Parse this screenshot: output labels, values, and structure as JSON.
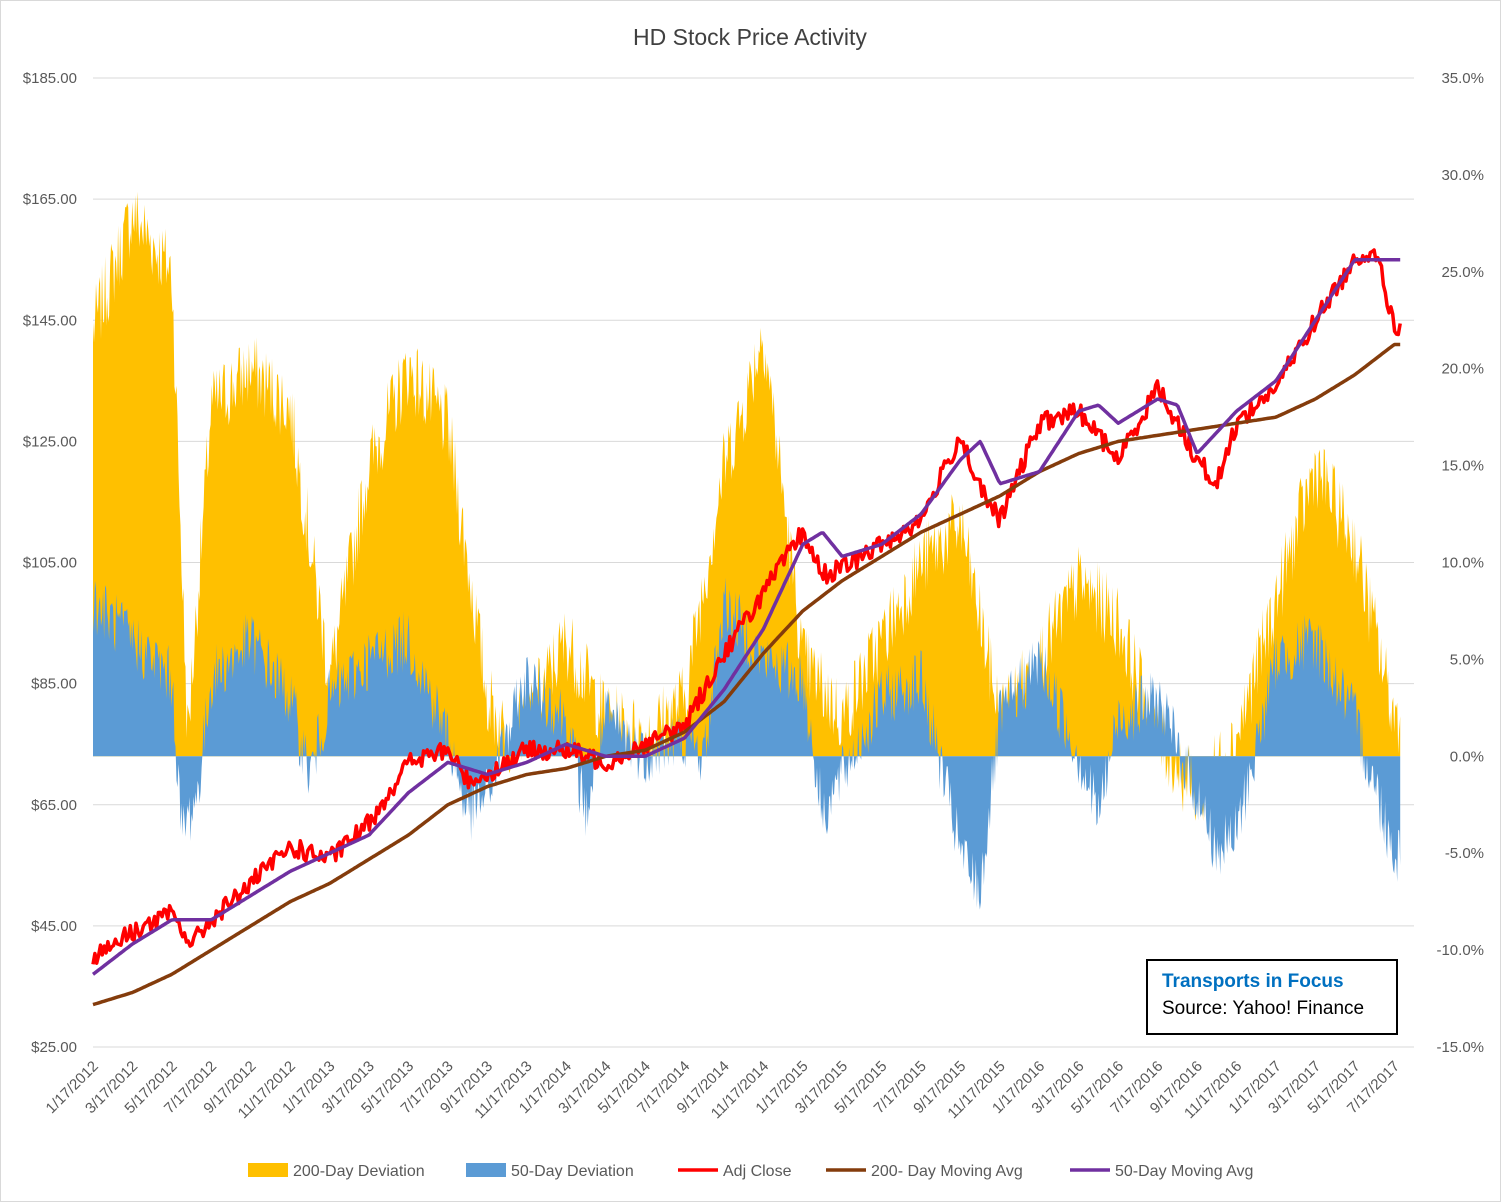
{
  "chart_data": {
    "type": "line",
    "title": "HD Stock Price Activity",
    "y_left": {
      "ticks": [
        "$185.00",
        "$165.00",
        "$145.00",
        "$125.00",
        "$105.00",
        "$85.00",
        "$65.00",
        "$45.00",
        "$25.00"
      ],
      "range": [
        25,
        185
      ]
    },
    "y_right": {
      "ticks": [
        "35.0%",
        "30.0%",
        "25.0%",
        "20.0%",
        "15.0%",
        "10.0%",
        "5.0%",
        "0.0%",
        "-5.0%",
        "-10.0%",
        "-15.0%"
      ],
      "range": [
        -15,
        35
      ]
    },
    "x_ticks": [
      "1/17/2012",
      "3/17/2012",
      "5/17/2012",
      "7/17/2012",
      "9/17/2012",
      "11/17/2012",
      "1/17/2013",
      "3/17/2013",
      "5/17/2013",
      "7/17/2013",
      "9/17/2013",
      "11/17/2013",
      "1/17/2014",
      "3/17/2014",
      "5/17/2014",
      "7/17/2014",
      "9/17/2014",
      "11/17/2014",
      "1/17/2015",
      "3/17/2015",
      "5/17/2015",
      "7/17/2015",
      "9/17/2015",
      "11/17/2015",
      "1/17/2016",
      "3/17/2016",
      "5/17/2016",
      "7/17/2016",
      "9/17/2016",
      "11/17/2016",
      "1/17/2017",
      "3/17/2017",
      "5/17/2017",
      "7/17/2017"
    ],
    "grid": true,
    "legend_position": "bottom",
    "series": [
      {
        "name": "200-Day Deviation",
        "type": "area",
        "axis": "right",
        "color": "#ffc000",
        "months": [
          0,
          2,
          4,
          4.8,
          6,
          8,
          10,
          12,
          14,
          16,
          18,
          20,
          21,
          22,
          24,
          26,
          28,
          30,
          32,
          33,
          34,
          36,
          38,
          40,
          42,
          44,
          46,
          48,
          50,
          52,
          54,
          56,
          58,
          60,
          62,
          64,
          66
        ],
        "values": [
          22,
          28,
          25,
          1,
          18,
          20,
          18,
          4,
          15,
          20,
          17,
          3,
          1,
          2,
          6,
          2,
          1,
          3,
          15,
          18,
          22,
          5,
          2,
          6,
          10,
          12,
          2,
          5,
          9,
          7,
          1,
          -2,
          1,
          8,
          15,
          11,
          2
        ]
      },
      {
        "name": "50-Day Deviation",
        "type": "area",
        "axis": "right",
        "color": "#5b9bd5",
        "months": [
          0,
          2,
          4,
          4.5,
          5.3,
          6,
          8,
          10,
          11,
          12,
          14,
          16,
          18,
          19,
          20,
          22,
          24,
          25,
          26,
          28,
          30,
          31,
          32,
          34,
          36,
          37,
          38,
          40,
          42,
          44,
          45,
          46,
          48,
          50,
          51,
          52,
          54,
          56,
          57,
          58,
          60,
          62,
          64,
          66
        ],
        "values": [
          8,
          6,
          4,
          -4,
          -2,
          4,
          6,
          3,
          -1,
          3,
          5,
          6,
          1,
          -3,
          -2,
          4,
          2,
          -3,
          2,
          0,
          1,
          0,
          8,
          5,
          4,
          -3,
          -1,
          3,
          4,
          -5,
          -7,
          2,
          5,
          0,
          -3,
          2,
          3,
          -2,
          -5,
          -4,
          5,
          6,
          2,
          -5
        ]
      },
      {
        "name": "Adj Close",
        "type": "line",
        "axis": "left",
        "color": "#ff0000",
        "months": [
          0,
          2,
          4,
          5,
          6,
          8,
          10,
          12,
          14,
          16,
          18,
          19,
          20,
          22,
          24,
          26,
          28,
          30,
          32,
          34,
          36,
          37,
          38,
          40,
          42,
          44,
          45,
          46,
          48,
          50,
          52,
          54,
          56,
          57,
          58,
          60,
          62,
          64,
          65,
          66
        ],
        "values": [
          40,
          44,
          47,
          42,
          46,
          52,
          58,
          56,
          62,
          72,
          74,
          69,
          70,
          74,
          74,
          72,
          75,
          78,
          90,
          100,
          110,
          103,
          104,
          108,
          112,
          126,
          117,
          112,
          128,
          130,
          122,
          134,
          122,
          118,
          128,
          134,
          145,
          155,
          157,
          144
        ]
      },
      {
        "name": "200- Day Moving Avg",
        "type": "line",
        "axis": "left",
        "color": "#843c0c",
        "months": [
          0,
          2,
          4,
          6,
          8,
          10,
          12,
          14,
          16,
          18,
          20,
          22,
          24,
          26,
          28,
          30,
          32,
          34,
          36,
          38,
          40,
          42,
          44,
          46,
          48,
          50,
          52,
          54,
          56,
          58,
          60,
          62,
          64,
          66
        ],
        "values": [
          32,
          34,
          37,
          41,
          45,
          49,
          52,
          56,
          60,
          65,
          68,
          70,
          71,
          73,
          74,
          77,
          82,
          90,
          97,
          102,
          106,
          110,
          113,
          116,
          120,
          123,
          125,
          126,
          127,
          128,
          129,
          132,
          136,
          141
        ]
      },
      {
        "name": "50-Day Moving Avg",
        "type": "line",
        "axis": "left",
        "color": "#7030a0",
        "months": [
          0,
          2,
          4,
          6,
          8,
          10,
          12,
          14,
          16,
          18,
          20,
          22,
          24,
          26,
          28,
          30,
          32,
          34,
          36,
          37,
          38,
          40,
          42,
          44,
          45,
          46,
          48,
          50,
          51,
          52,
          54,
          55,
          56,
          58,
          60,
          62,
          64,
          66
        ],
        "values": [
          37,
          42,
          46,
          46,
          50,
          54,
          57,
          60,
          67,
          72,
          70,
          72,
          75,
          73,
          73,
          76,
          84,
          94,
          108,
          110,
          106,
          108,
          113,
          122,
          125,
          118,
          120,
          130,
          131,
          128,
          132,
          131,
          123,
          130,
          135,
          145,
          155,
          155
        ]
      }
    ]
  },
  "source_box": {
    "title": "Transports in Focus",
    "text": "Source: Yahoo! Finance"
  }
}
